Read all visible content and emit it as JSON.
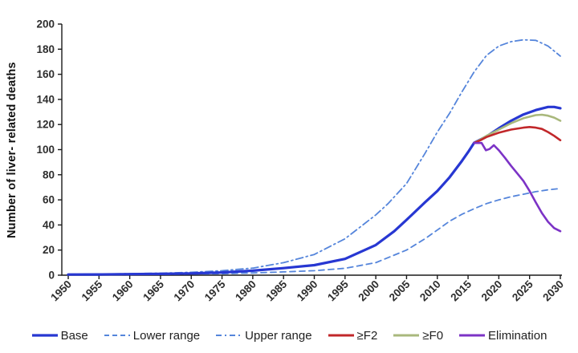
{
  "figure": {
    "background": "#ffffff",
    "axis_color": "#1a1a1a",
    "tick_label_color": "#2e2e2e"
  },
  "chart_data": {
    "type": "line",
    "title": "",
    "xlabel": "",
    "ylabel": "Number of liver- related deaths",
    "xlim": [
      1950,
      2030
    ],
    "ylim": [
      0,
      200
    ],
    "x_ticks": [
      1950,
      1955,
      1960,
      1965,
      1970,
      1975,
      1980,
      1985,
      1990,
      1995,
      2000,
      2005,
      2010,
      2015,
      2020,
      2025,
      2030
    ],
    "y_ticks": [
      0,
      20,
      40,
      60,
      80,
      100,
      120,
      140,
      160,
      180,
      200
    ],
    "grid": false,
    "legend_position": "bottom",
    "series": [
      {
        "name": "Base",
        "slug": "base",
        "color": "#2737d2",
        "line_style": "solid",
        "line_width": 3.2,
        "points": [
          [
            1950,
            0.5
          ],
          [
            1955,
            0.6
          ],
          [
            1960,
            0.8
          ],
          [
            1965,
            1.0
          ],
          [
            1970,
            1.4
          ],
          [
            1975,
            2.2
          ],
          [
            1980,
            3.6
          ],
          [
            1985,
            5.6
          ],
          [
            1990,
            8
          ],
          [
            1995,
            13
          ],
          [
            2000,
            24
          ],
          [
            2003,
            35
          ],
          [
            2005,
            44
          ],
          [
            2008,
            58
          ],
          [
            2010,
            67
          ],
          [
            2012,
            78
          ],
          [
            2014,
            91
          ],
          [
            2015,
            98
          ],
          [
            2016,
            105.5
          ],
          [
            2018,
            110.5
          ],
          [
            2020,
            117
          ],
          [
            2022,
            123
          ],
          [
            2024,
            128
          ],
          [
            2026,
            131.5
          ],
          [
            2028,
            134
          ],
          [
            2029,
            134
          ],
          [
            2030,
            133
          ]
        ]
      },
      {
        "name": "Lower range",
        "slug": "lower-range",
        "color": "#5585db",
        "line_style": "dashed",
        "line_width": 1.8,
        "points": [
          [
            1950,
            0.3
          ],
          [
            1955,
            0.4
          ],
          [
            1960,
            0.5
          ],
          [
            1965,
            0.7
          ],
          [
            1970,
            0.9
          ],
          [
            1975,
            1.2
          ],
          [
            1980,
            1.8
          ],
          [
            1985,
            2.6
          ],
          [
            1990,
            3.6
          ],
          [
            1995,
            5.5
          ],
          [
            2000,
            10
          ],
          [
            2005,
            20
          ],
          [
            2008,
            29
          ],
          [
            2010,
            36
          ],
          [
            2012,
            43
          ],
          [
            2014,
            48.5
          ],
          [
            2016,
            53
          ],
          [
            2018,
            57
          ],
          [
            2020,
            60
          ],
          [
            2022,
            62.5
          ],
          [
            2024,
            64.5
          ],
          [
            2026,
            66.5
          ],
          [
            2028,
            68
          ],
          [
            2030,
            69
          ]
        ]
      },
      {
        "name": "Upper range",
        "slug": "upper-range",
        "color": "#5585db",
        "line_style": "dashdot",
        "line_width": 1.8,
        "points": [
          [
            1950,
            0.7
          ],
          [
            1955,
            0.9
          ],
          [
            1960,
            1.2
          ],
          [
            1965,
            1.6
          ],
          [
            1970,
            2.3
          ],
          [
            1975,
            3.6
          ],
          [
            1980,
            5.6
          ],
          [
            1985,
            10
          ],
          [
            1990,
            16.5
          ],
          [
            1995,
            29
          ],
          [
            2000,
            48
          ],
          [
            2002,
            57
          ],
          [
            2005,
            73
          ],
          [
            2008,
            97
          ],
          [
            2010,
            114
          ],
          [
            2012,
            129
          ],
          [
            2014,
            146
          ],
          [
            2016,
            162
          ],
          [
            2018,
            175
          ],
          [
            2020,
            182.5
          ],
          [
            2022,
            186
          ],
          [
            2024,
            187.5
          ],
          [
            2026,
            187
          ],
          [
            2028,
            182.5
          ],
          [
            2030,
            174.5
          ]
        ]
      },
      {
        "name": "≥F2",
        "slug": "f2",
        "color": "#c1272a",
        "line_style": "solid",
        "line_width": 2.6,
        "points": [
          [
            2016,
            105.3
          ],
          [
            2017,
            107.5
          ],
          [
            2018,
            110
          ],
          [
            2020,
            113.5
          ],
          [
            2022,
            116
          ],
          [
            2024,
            117.5
          ],
          [
            2025,
            118
          ],
          [
            2026,
            117.5
          ],
          [
            2027,
            116.5
          ],
          [
            2028,
            114
          ],
          [
            2029,
            111
          ],
          [
            2030,
            107.5
          ]
        ]
      },
      {
        "name": "≥F0",
        "slug": "f0",
        "color": "#a9b87c",
        "line_style": "solid",
        "line_width": 2.6,
        "points": [
          [
            2016,
            105.3
          ],
          [
            2017,
            108
          ],
          [
            2018,
            111
          ],
          [
            2020,
            116
          ],
          [
            2022,
            121
          ],
          [
            2024,
            125
          ],
          [
            2026,
            127.5
          ],
          [
            2027,
            127.8
          ],
          [
            2028,
            127
          ],
          [
            2029,
            125.5
          ],
          [
            2030,
            123
          ]
        ]
      },
      {
        "name": "Elimination",
        "slug": "elimination",
        "color": "#7c33c6",
        "line_style": "solid",
        "line_width": 2.6,
        "points": [
          [
            2016,
            105.3
          ],
          [
            2017.2,
            105.3
          ],
          [
            2017.9,
            99.5
          ],
          [
            2018.5,
            100.5
          ],
          [
            2019.2,
            103.5
          ],
          [
            2020,
            99.5
          ],
          [
            2021,
            93.5
          ],
          [
            2022,
            87
          ],
          [
            2023,
            81
          ],
          [
            2024,
            75
          ],
          [
            2025,
            67
          ],
          [
            2026,
            58
          ],
          [
            2027,
            49.5
          ],
          [
            2028,
            42.5
          ],
          [
            2029,
            37.5
          ],
          [
            2030,
            35
          ]
        ]
      }
    ]
  }
}
